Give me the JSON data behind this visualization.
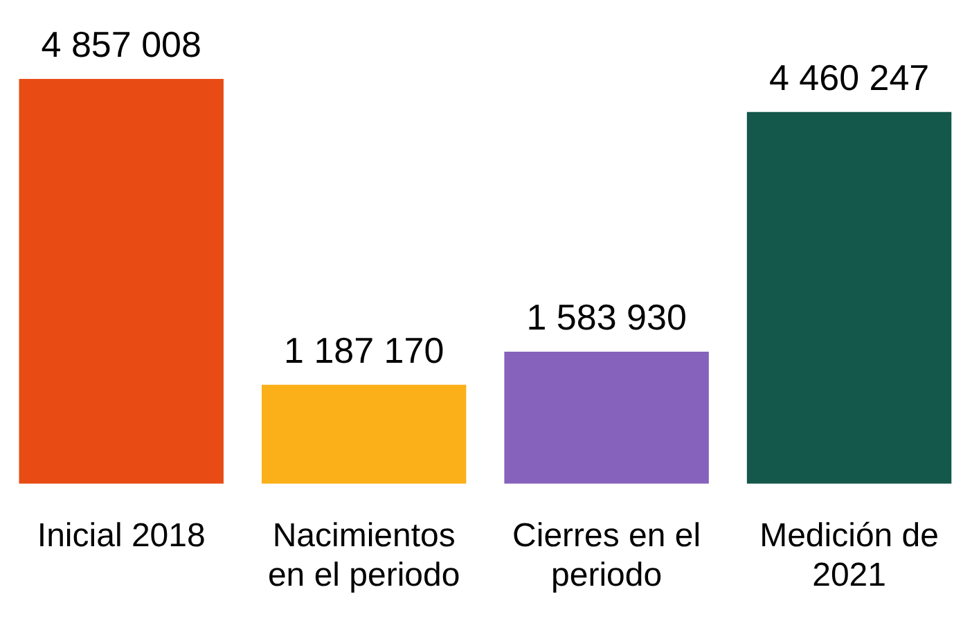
{
  "chart_data": {
    "type": "bar",
    "categories": [
      "Inicial 2018",
      "Nacimientos en el periodo",
      "Cierres en el periodo",
      "Medición de 2021"
    ],
    "values": [
      4857008,
      1187170,
      1583930,
      4460247
    ],
    "colors": [
      "#e84c14",
      "#fbb01a",
      "#8662bd",
      "#14574b"
    ],
    "value_labels": [
      "4 857 008",
      "1 187 170",
      "1 583 930",
      "4 460 247"
    ],
    "grid": false,
    "legend": false
  }
}
